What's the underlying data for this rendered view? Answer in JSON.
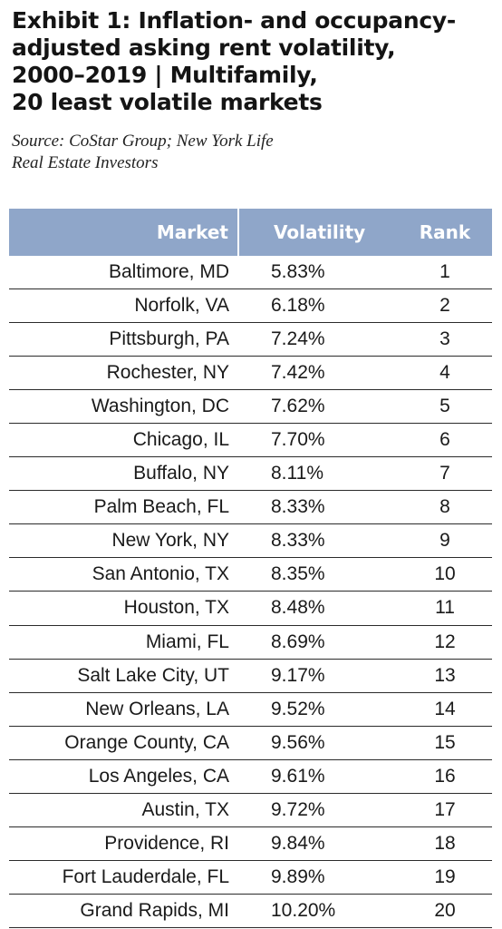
{
  "title_lines": [
    "Exhibit 1: Inflation- and occupancy-",
    "adjusted asking rent volatility,",
    "2000–2019 | Multifamily,",
    "20 least volatile markets"
  ],
  "source_lines": [
    "Source: CoStar Group; New York Life",
    "Real Estate Investors"
  ],
  "header_color": "#8fa6c9",
  "chart_data": {
    "type": "table",
    "title": "Exhibit 1: Inflation- and occupancy-adjusted asking rent volatility, 2000–2019 | Multifamily, 20 least volatile markets",
    "columns": [
      "Market",
      "Volatility",
      "Rank"
    ],
    "rows": [
      {
        "market": "Baltimore, MD",
        "volatility": "5.83%",
        "rank": "1"
      },
      {
        "market": "Norfolk, VA",
        "volatility": "6.18%",
        "rank": "2"
      },
      {
        "market": "Pittsburgh, PA",
        "volatility": "7.24%",
        "rank": "3"
      },
      {
        "market": "Rochester, NY",
        "volatility": "7.42%",
        "rank": "4"
      },
      {
        "market": "Washington, DC",
        "volatility": "7.62%",
        "rank": "5"
      },
      {
        "market": "Chicago, IL",
        "volatility": "7.70%",
        "rank": "6"
      },
      {
        "market": "Buffalo, NY",
        "volatility": "8.11%",
        "rank": "7"
      },
      {
        "market": "Palm Beach, FL",
        "volatility": "8.33%",
        "rank": "8"
      },
      {
        "market": "New York, NY",
        "volatility": "8.33%",
        "rank": "9"
      },
      {
        "market": "San Antonio, TX",
        "volatility": "8.35%",
        "rank": "10"
      },
      {
        "market": "Houston, TX",
        "volatility": "8.48%",
        "rank": "11"
      },
      {
        "market": "Miami, FL",
        "volatility": "8.69%",
        "rank": "12"
      },
      {
        "market": "Salt Lake City, UT",
        "volatility": "9.17%",
        "rank": "13"
      },
      {
        "market": "New Orleans, LA",
        "volatility": "9.52%",
        "rank": "14"
      },
      {
        "market": "Orange County, CA",
        "volatility": "9.56%",
        "rank": "15"
      },
      {
        "market": "Los Angeles, CA",
        "volatility": "9.61%",
        "rank": "16"
      },
      {
        "market": "Austin, TX",
        "volatility": "9.72%",
        "rank": "17"
      },
      {
        "market": "Providence, RI",
        "volatility": "9.84%",
        "rank": "18"
      },
      {
        "market": "Fort Lauderdale, FL",
        "volatility": "9.89%",
        "rank": "19"
      },
      {
        "market": "Grand Rapids, MI",
        "volatility": "10.20%",
        "rank": "20"
      }
    ]
  }
}
